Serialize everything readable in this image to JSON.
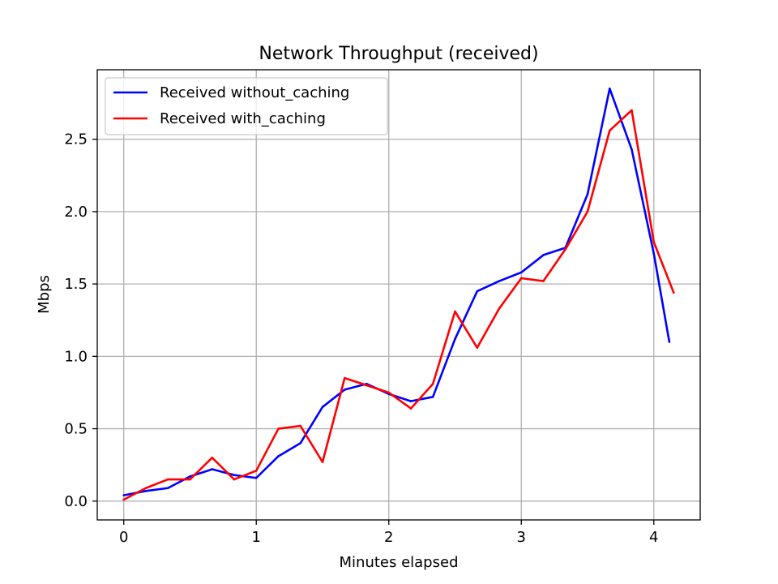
{
  "chart_data": {
    "type": "line",
    "title": "Network Throughput (received)",
    "xlabel": "Minutes elapsed",
    "ylabel": "Mbps",
    "xlim": [
      -0.2,
      4.35
    ],
    "ylim": [
      -0.13,
      2.98
    ],
    "xticks": [
      0,
      1,
      2,
      3,
      4
    ],
    "xtick_labels": [
      "0",
      "1",
      "2",
      "3",
      "4"
    ],
    "yticks": [
      0.0,
      0.5,
      1.0,
      1.5,
      2.0,
      2.5
    ],
    "ytick_labels": [
      "0.0",
      "0.5",
      "1.0",
      "1.5",
      "2.0",
      "2.5"
    ],
    "grid": true,
    "legend_position": "top-left",
    "series": [
      {
        "name": "Received without_caching",
        "color": "#0000ff",
        "x": [
          0,
          0.167,
          0.333,
          0.5,
          0.667,
          0.833,
          1.0,
          1.167,
          1.333,
          1.5,
          1.667,
          1.833,
          2.0,
          2.167,
          2.333,
          2.5,
          2.667,
          2.833,
          3.0,
          3.167,
          3.333,
          3.5,
          3.667,
          3.833,
          4.0,
          4.117
        ],
        "values": [
          0.04,
          0.07,
          0.09,
          0.17,
          0.22,
          0.18,
          0.16,
          0.31,
          0.4,
          0.65,
          0.77,
          0.81,
          0.74,
          0.69,
          0.72,
          1.12,
          1.45,
          1.52,
          1.58,
          1.7,
          1.75,
          2.12,
          2.85,
          2.43,
          1.71,
          1.1
        ]
      },
      {
        "name": "Received with_caching",
        "color": "#ff0000",
        "x": [
          0,
          0.167,
          0.333,
          0.5,
          0.667,
          0.833,
          1.0,
          1.167,
          1.333,
          1.5,
          1.667,
          1.833,
          2.0,
          2.167,
          2.333,
          2.5,
          2.667,
          2.833,
          3.0,
          3.167,
          3.333,
          3.5,
          3.667,
          3.833,
          4.0,
          4.15
        ],
        "values": [
          0.01,
          0.09,
          0.15,
          0.15,
          0.3,
          0.15,
          0.21,
          0.5,
          0.52,
          0.27,
          0.85,
          0.8,
          0.75,
          0.64,
          0.81,
          1.31,
          1.06,
          1.33,
          1.54,
          1.52,
          1.74,
          2.0,
          2.56,
          2.7,
          1.79,
          1.44
        ]
      }
    ]
  }
}
